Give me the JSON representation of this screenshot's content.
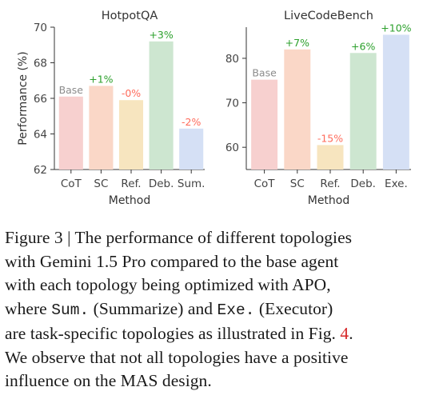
{
  "chart_data": [
    {
      "type": "bar",
      "title": "HotpotQA",
      "xlabel": "Method",
      "ylabel": "Performance (%)",
      "ylim": [
        62,
        70
      ],
      "yticks": [
        62,
        64,
        66,
        68,
        70
      ],
      "categories": [
        "CoT",
        "SC",
        "Ref.",
        "Deb.",
        "Sum."
      ],
      "values": [
        66.1,
        66.7,
        65.9,
        69.2,
        64.3
      ],
      "bar_labels": [
        "Base",
        "+1%",
        "-0%",
        "+3%",
        "-2%"
      ],
      "label_colors": [
        "#8c8c8c",
        "#2ca02c",
        "#ff6b5b",
        "#2ca02c",
        "#ff6b5b"
      ],
      "colors": [
        "#f7d0cf",
        "#fad7c7",
        "#f7e5bf",
        "#cde6d0",
        "#d5e0f5"
      ]
    },
    {
      "type": "bar",
      "title": "LiveCodeBench",
      "xlabel": "Method",
      "ylabel": "",
      "ylim": [
        55,
        87
      ],
      "yticks": [
        60,
        70,
        80
      ],
      "categories": [
        "CoT",
        "SC",
        "Ref.",
        "Deb.",
        "Exe."
      ],
      "values": [
        75.2,
        82.0,
        60.5,
        81.2,
        85.3
      ],
      "bar_labels": [
        "Base",
        "+7%",
        "-15%",
        "+6%",
        "+10%"
      ],
      "label_colors": [
        "#8c8c8c",
        "#2ca02c",
        "#ff6b5b",
        "#2ca02c",
        "#2ca02c"
      ],
      "colors": [
        "#f7d0cf",
        "#fad7c7",
        "#f7e5bf",
        "#cde6d0",
        "#d5e0f5"
      ]
    }
  ],
  "caption": {
    "figure_label": "Figure 3 | ",
    "line1": "The performance of different topologies",
    "line2": "with Gemini 1.5 Pro compared to the base agent",
    "line3": "with each topology being optimized with APO,",
    "line4_a": "where ",
    "line4_sum": "Sum.",
    "line4_b": " (Summarize) and ",
    "line4_exe": "Exe.",
    "line4_c": " (Executor)",
    "line5_a": "are task-specific topologies as illustrated in Fig. ",
    "line5_ref": "4",
    "line5_b": ".",
    "line6": "We observe that not all topologies have a positive",
    "line7": "influence on the MAS design."
  }
}
